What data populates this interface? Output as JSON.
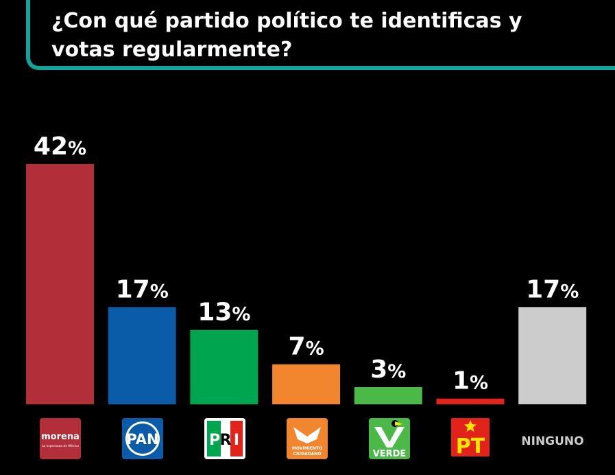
{
  "title": "¿Con qué partido político te identificas y votas regularmente?",
  "chart_data": {
    "type": "bar",
    "categories": [
      "morena",
      "PAN",
      "PRI",
      "MOVIMIENTO CIUDADANO",
      "VERDE",
      "PT",
      "NINGUNO"
    ],
    "values": [
      42,
      17,
      13,
      7,
      3,
      1,
      17
    ],
    "value_suffix": "%",
    "ylim": [
      0,
      42
    ],
    "grid": false,
    "colors": [
      "#b22f3a",
      "#0a5ca8",
      "#00a54f",
      "#f2862e",
      "#4bb947",
      "#e2231a",
      "#cccccc"
    ]
  },
  "logos": {
    "morena": {
      "name": "morena",
      "tagline": "La esperanza de México",
      "icon": "morena-logo",
      "bg": "#b22f3a"
    },
    "pan": {
      "name": "PAN",
      "icon": "pan-logo",
      "bg": "#0a5ca8"
    },
    "pri": {
      "letters": [
        "P",
        "R",
        "I"
      ],
      "icon": "pri-logo"
    },
    "mc": {
      "line1": "MOVIMIENTO",
      "line2": "CIUDADANO",
      "icon": "mc-eagle-logo",
      "bg": "#f2862e"
    },
    "verde": {
      "name": "VERDE",
      "icon": "verde-toucan-logo",
      "bg": "#4bb947"
    },
    "pt": {
      "name": "PT",
      "icon": "pt-star-logo",
      "bg": "#e2231a",
      "fg": "#ffe600"
    },
    "ninguno": {
      "name": "NINGUNO",
      "color": "#cccccc"
    }
  }
}
